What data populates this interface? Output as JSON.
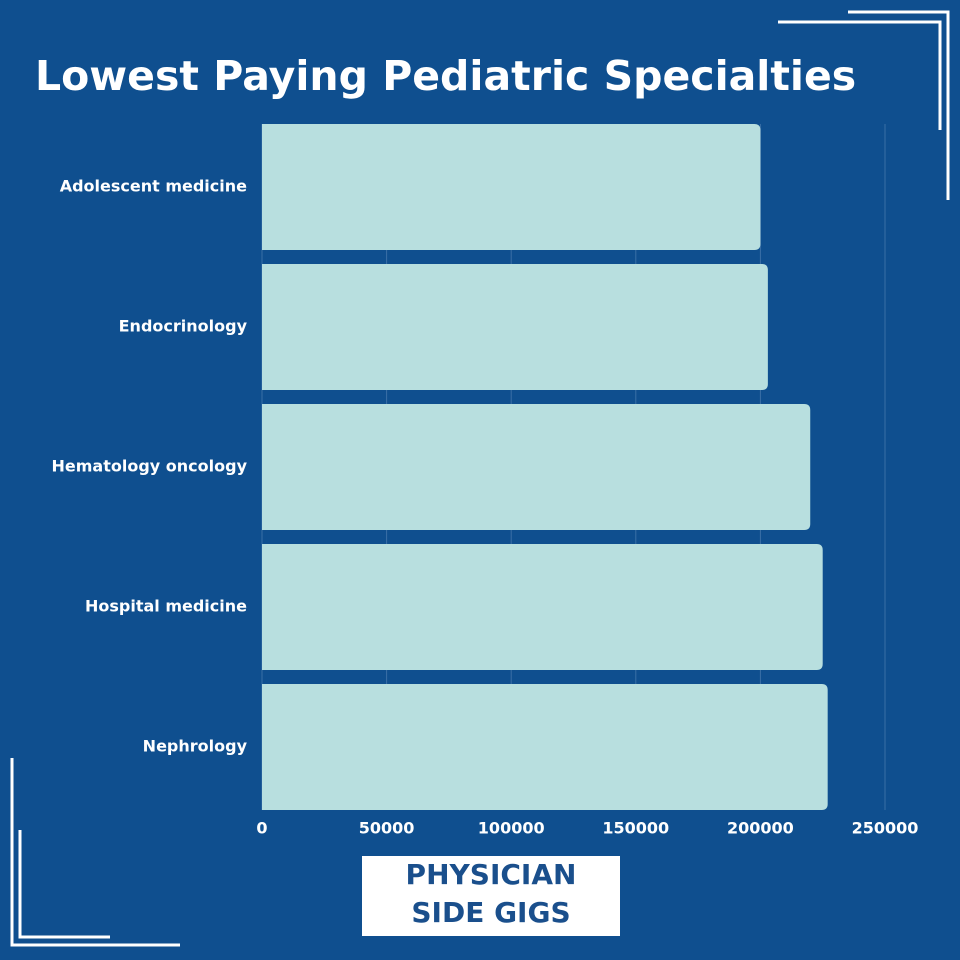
{
  "chart_data": {
    "type": "barh",
    "title": "Lowest Paying Pediatric Specialties",
    "categories": [
      "Adolescent medicine",
      "Endocrinology",
      "Hematology oncology",
      "Hospital medicine",
      "Nephrology"
    ],
    "values": [
      200000,
      203000,
      220000,
      225000,
      227000
    ],
    "color": "#b8dfdf",
    "xlim": [
      0,
      250000
    ],
    "xticks": [
      0,
      50000,
      100000,
      150000,
      200000,
      250000
    ],
    "grid": true
  },
  "logo": {
    "lines": [
      "PHYSICIAN",
      "SIDE GIGS"
    ]
  }
}
